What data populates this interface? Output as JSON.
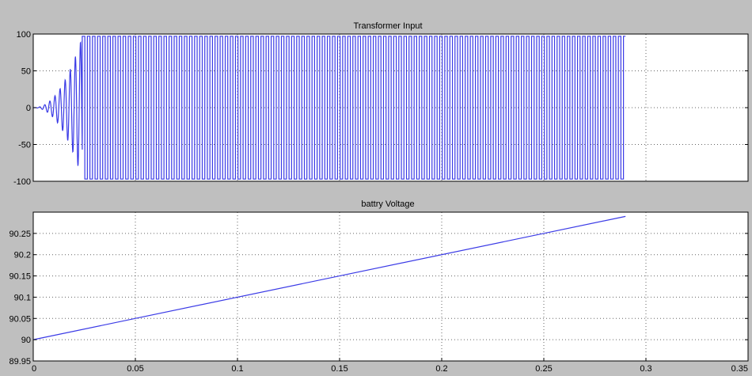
{
  "chart_data": [
    {
      "type": "line",
      "title": "Transformer Input",
      "xlabel": "",
      "ylabel": "",
      "xlim": [
        0,
        0.35
      ],
      "ylim": [
        -100,
        100
      ],
      "yticks": [
        100,
        50,
        0,
        -50,
        -100
      ],
      "ytick_labels": [
        "100",
        "50",
        "0",
        "-50",
        "-100"
      ],
      "grid": true,
      "series": [
        {
          "color": "#3a3ae6",
          "signal": "square-wave",
          "amplitude": 97,
          "frequency_hz": 400,
          "ramp_end_x": 0.024,
          "x_end": 0.29
        }
      ]
    },
    {
      "type": "line",
      "title": "battry Voltage",
      "xlabel": "",
      "ylabel": "",
      "xlim": [
        0,
        0.35
      ],
      "ylim": [
        89.95,
        90.3
      ],
      "xticks": [
        0,
        0.05,
        0.1,
        0.15,
        0.2,
        0.25,
        0.3,
        0.35
      ],
      "xtick_labels": [
        "0",
        "0.05",
        "0.1",
        "0.15",
        "0.2",
        "0.25",
        "0.3",
        "0.35"
      ],
      "yticks": [
        90.25,
        90.2,
        90.15,
        90.1,
        90.05,
        90,
        89.95
      ],
      "ytick_labels": [
        "90.25",
        "90.2",
        "90.15",
        "90.1",
        "90.05",
        "90",
        "89.95"
      ],
      "grid": true,
      "series": [
        {
          "color": "#3a3ae6",
          "x": [
            0,
            0.29
          ],
          "y": [
            90.0,
            90.29
          ]
        }
      ]
    }
  ]
}
